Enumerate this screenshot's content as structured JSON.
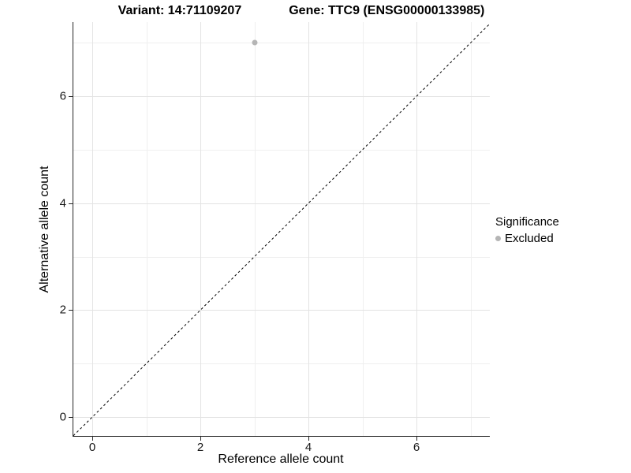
{
  "figure": {
    "title_left": "Variant: 14:71109207",
    "title_right": "Gene: TTC9 (ENSG00000133985)"
  },
  "chart_data": {
    "type": "scatter",
    "title": "Variant: 14:71109207   Gene: TTC9 (ENSG00000133985)",
    "xlabel": "Reference allele count",
    "ylabel": "Alternative allele count",
    "xlim": [
      -0.35,
      7.35
    ],
    "ylim": [
      -0.35,
      7.35
    ],
    "x_ticks": [
      0,
      2,
      4,
      6
    ],
    "y_ticks": [
      0,
      2,
      4,
      6
    ],
    "minor_ticks": [
      1,
      3,
      5,
      7
    ],
    "grid": true,
    "background": "#ffffff",
    "major_grid_color": "#e3e3e3",
    "minor_grid_color": "#efefef",
    "axis_color": "#262626",
    "identity_line": {
      "style": "dashed",
      "color": "#000000",
      "from": [
        -0.35,
        -0.35
      ],
      "to": [
        7.35,
        7.35
      ]
    },
    "series": [
      {
        "name": "Excluded",
        "color": "#b5b5b5",
        "points": [
          {
            "x": 3,
            "y": 7
          }
        ]
      }
    ],
    "legend": {
      "title": "Significance",
      "position": "right",
      "entries": [
        {
          "label": "Excluded",
          "color": "#b5b5b5"
        }
      ]
    }
  }
}
